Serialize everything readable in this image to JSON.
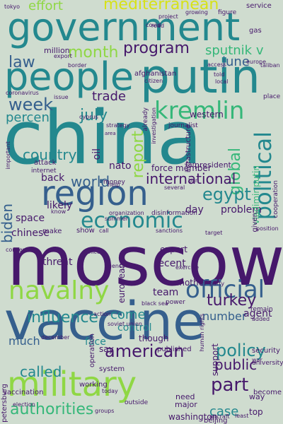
{
  "palette": {
    "background": "#cfdccf",
    "dark_purple": "#46186b",
    "blue": "#355f8d",
    "teal": "#23888e",
    "green": "#35b779",
    "lime": "#8fd744"
  },
  "words": [
    {
      "text": "moscow",
      "color": "#46186b",
      "rotation": "horizontal"
    },
    {
      "text": "china",
      "color": "#23888e",
      "rotation": "horizontal"
    },
    {
      "text": "vaccine",
      "color": "#355f8d",
      "rotation": "horizontal"
    },
    {
      "text": "government",
      "color": "#23888e",
      "rotation": "horizontal"
    },
    {
      "text": "people",
      "color": "#23888e",
      "rotation": "horizontal"
    },
    {
      "text": "putin",
      "color": "#23888e",
      "rotation": "horizontal"
    },
    {
      "text": "region",
      "color": "#355f8d",
      "rotation": "horizontal"
    },
    {
      "text": "navalny",
      "color": "#8fd744",
      "rotation": "horizontal"
    },
    {
      "text": "military",
      "color": "#8fd744",
      "rotation": "horizontal"
    },
    {
      "text": "kremlin",
      "color": "#35b779",
      "rotation": "horizontal"
    },
    {
      "text": "economic",
      "color": "#23888e",
      "rotation": "horizontal"
    },
    {
      "text": "official",
      "color": "#355f8d",
      "rotation": "horizontal"
    },
    {
      "text": "political",
      "color": "#23888e",
      "rotation": "vertical"
    },
    {
      "text": "mediterranean",
      "color": "#d7e219",
      "rotation": "horizontal"
    },
    {
      "text": "effort",
      "color": "#8fd744",
      "rotation": "horizontal"
    },
    {
      "text": "program",
      "color": "#46186b",
      "rotation": "horizontal"
    },
    {
      "text": "month",
      "color": "#8fd744",
      "rotation": "horizontal"
    },
    {
      "text": "sputnik v",
      "color": "#35b779",
      "rotation": "horizontal"
    },
    {
      "text": "law",
      "color": "#355f8d",
      "rotation": "horizontal"
    },
    {
      "text": "june",
      "color": "#355f8d",
      "rotation": "horizontal"
    },
    {
      "text": "week",
      "color": "#355f8d",
      "rotation": "horizontal"
    },
    {
      "text": "trade",
      "color": "#46186b",
      "rotation": "horizontal"
    },
    {
      "text": "percent",
      "color": "#23888e",
      "rotation": "horizontal"
    },
    {
      "text": "july",
      "color": "#23888e",
      "rotation": "horizontal"
    },
    {
      "text": "report",
      "color": "#8fd744",
      "rotation": "vertical"
    },
    {
      "text": "global",
      "color": "#35b779",
      "rotation": "vertical"
    },
    {
      "text": "countrys",
      "color": "#23888e",
      "rotation": "horizontal"
    },
    {
      "text": "world",
      "color": "#355f8d",
      "rotation": "horizontal"
    },
    {
      "text": "international",
      "color": "#46186b",
      "rotation": "horizontal"
    },
    {
      "text": "egypt",
      "color": "#23888e",
      "rotation": "horizontal"
    },
    {
      "text": "biden",
      "color": "#355f8d",
      "rotation": "vertical"
    },
    {
      "text": "turkey",
      "color": "#46186b",
      "rotation": "horizontal"
    },
    {
      "text": "influence",
      "color": "#23888e",
      "rotation": "horizontal"
    },
    {
      "text": "come",
      "color": "#23888e",
      "rotation": "horizontal"
    },
    {
      "text": "number",
      "color": "#355f8d",
      "rotation": "horizontal"
    },
    {
      "text": "american",
      "color": "#46186b",
      "rotation": "horizontal"
    },
    {
      "text": "policy",
      "color": "#23888e",
      "rotation": "horizontal"
    },
    {
      "text": "part",
      "color": "#46186b",
      "rotation": "horizontal"
    },
    {
      "text": "called",
      "color": "#23888e",
      "rotation": "horizontal"
    },
    {
      "text": "authorities",
      "color": "#35b779",
      "rotation": "horizontal"
    },
    {
      "text": "case",
      "color": "#23888e",
      "rotation": "horizontal"
    },
    {
      "text": "public",
      "color": "#46186b",
      "rotation": "horizontal"
    },
    {
      "text": "much",
      "color": "#355f8d",
      "rotation": "horizontal"
    },
    {
      "text": "face",
      "color": "#23888e",
      "rotation": "horizontal"
    },
    {
      "text": "control",
      "color": "#23888e",
      "rotation": "horizontal"
    },
    {
      "text": "chinese",
      "color": "#46186b",
      "rotation": "horizontal"
    },
    {
      "text": "space",
      "color": "#46186b",
      "rotation": "horizontal"
    },
    {
      "text": "likely",
      "color": "#46186b",
      "rotation": "horizontal"
    },
    {
      "text": "back",
      "color": "#46186b",
      "rotation": "horizontal"
    },
    {
      "text": "nato",
      "color": "#46186b",
      "rotation": "horizontal"
    },
    {
      "text": "oil",
      "color": "#46186b",
      "rotation": "vertical"
    },
    {
      "text": "problem",
      "color": "#46186b",
      "rotation": "horizontal"
    },
    {
      "text": "day",
      "color": "#46186b",
      "rotation": "horizontal"
    },
    {
      "text": "team",
      "color": "#46186b",
      "rotation": "horizontal"
    },
    {
      "text": "another",
      "color": "#46186b",
      "rotation": "horizontal"
    },
    {
      "text": "threat",
      "color": "#46186b",
      "rotation": "horizontal"
    },
    {
      "text": "recent",
      "color": "#46186b",
      "rotation": "horizontal"
    },
    {
      "text": "expert",
      "color": "#46186b",
      "rotation": "horizontal"
    },
    {
      "text": "european",
      "color": "#46186b",
      "rotation": "vertical"
    },
    {
      "text": "agent",
      "color": "#46186b",
      "rotation": "horizontal"
    },
    {
      "text": "western",
      "color": "#46186b",
      "rotation": "horizontal"
    },
    {
      "text": "force member",
      "color": "#46186b",
      "rotation": "horizontal"
    },
    {
      "text": "million",
      "color": "#46186b",
      "rotation": "horizontal"
    },
    {
      "text": "president",
      "color": "#46186b",
      "rotation": "horizontal"
    },
    {
      "text": "vladimir putin",
      "color": "#35b779",
      "rotation": "vertical"
    },
    {
      "text": "washington",
      "color": "#46186b",
      "rotation": "horizontal"
    },
    {
      "text": "major",
      "color": "#46186b",
      "rotation": "horizontal"
    },
    {
      "text": "need",
      "color": "#46186b",
      "rotation": "horizontal"
    },
    {
      "text": "top",
      "color": "#46186b",
      "rotation": "horizontal"
    },
    {
      "text": "way",
      "color": "#46186b",
      "rotation": "horizontal"
    },
    {
      "text": "though",
      "color": "#46186b",
      "rotation": "horizontal"
    },
    {
      "text": "published",
      "color": "#46186b",
      "rotation": "horizontal"
    },
    {
      "text": "support",
      "color": "#46186b",
      "rotation": "vertical"
    },
    {
      "text": "say",
      "color": "#46186b",
      "rotation": "horizontal"
    },
    {
      "text": "system",
      "color": "#46186b",
      "rotation": "horizontal"
    },
    {
      "text": "working",
      "color": "#46186b",
      "rotation": "horizontal"
    },
    {
      "text": "beijing",
      "color": "#46186b",
      "rotation": "horizontal"
    },
    {
      "text": "security",
      "color": "#46186b",
      "rotation": "horizontal"
    },
    {
      "text": "become",
      "color": "#46186b",
      "rotation": "horizontal"
    },
    {
      "text": "afghanistan",
      "color": "#46186b",
      "rotation": "horizontal"
    },
    {
      "text": "citizen",
      "color": "#46186b",
      "rotation": "horizontal"
    },
    {
      "text": "told",
      "color": "#46186b",
      "rotation": "horizontal"
    },
    {
      "text": "local",
      "color": "#46186b",
      "rotation": "horizontal"
    },
    {
      "text": "journalist",
      "color": "#46186b",
      "rotation": "horizontal"
    },
    {
      "text": "service",
      "color": "#46186b",
      "rotation": "horizontal"
    },
    {
      "text": "figure",
      "color": "#46186b",
      "rotation": "horizontal"
    },
    {
      "text": "growing",
      "color": "#46186b",
      "rotation": "horizontal"
    },
    {
      "text": "gas",
      "color": "#46186b",
      "rotation": "horizontal"
    },
    {
      "text": "covid",
      "color": "#46186b",
      "rotation": "horizontal"
    },
    {
      "text": "export",
      "color": "#46186b",
      "rotation": "horizontal"
    },
    {
      "text": "cyprus",
      "color": "#46186b",
      "rotation": "horizontal"
    },
    {
      "text": "issue",
      "color": "#46186b",
      "rotation": "horizontal"
    },
    {
      "text": "strategy",
      "color": "#46186b",
      "rotation": "horizontal"
    },
    {
      "text": "area",
      "color": "#46186b",
      "rotation": "horizontal"
    },
    {
      "text": "place",
      "color": "#46186b",
      "rotation": "horizontal"
    },
    {
      "text": "internet",
      "color": "#46186b",
      "rotation": "horizontal"
    },
    {
      "text": "attack",
      "color": "#46186b",
      "rotation": "horizontal"
    },
    {
      "text": "money",
      "color": "#46186b",
      "rotation": "horizontal"
    },
    {
      "text": "far",
      "color": "#46186b",
      "rotation": "horizontal"
    },
    {
      "text": "organization",
      "color": "#46186b",
      "rotation": "horizontal"
    },
    {
      "text": "disinformation",
      "color": "#46186b",
      "rotation": "horizontal"
    },
    {
      "text": "know",
      "color": "#46186b",
      "rotation": "horizontal"
    },
    {
      "text": "make",
      "color": "#46186b",
      "rotation": "horizontal"
    },
    {
      "text": "show",
      "color": "#46186b",
      "rotation": "horizontal"
    },
    {
      "text": "call",
      "color": "#46186b",
      "rotation": "horizontal"
    },
    {
      "text": "sanctions",
      "color": "#46186b",
      "rotation": "horizontal"
    },
    {
      "text": "police",
      "color": "#46186b",
      "rotation": "horizontal"
    },
    {
      "text": "agency",
      "color": "#46186b",
      "rotation": "horizontal"
    },
    {
      "text": "exercise",
      "color": "#46186b",
      "rotation": "horizontal"
    },
    {
      "text": "party",
      "color": "#46186b",
      "rotation": "horizontal"
    },
    {
      "text": "remain",
      "color": "#46186b",
      "rotation": "horizontal"
    },
    {
      "text": "power",
      "color": "#46186b",
      "rotation": "horizontal"
    },
    {
      "text": "added",
      "color": "#46186b",
      "rotation": "horizontal"
    },
    {
      "text": "december",
      "color": "#46186b",
      "rotation": "horizontal"
    },
    {
      "text": "university",
      "color": "#46186b",
      "rotation": "horizontal"
    },
    {
      "text": "operation",
      "color": "#46186b",
      "rotation": "vertical"
    },
    {
      "text": "vaccination",
      "color": "#46186b",
      "rotation": "horizontal"
    },
    {
      "text": "election",
      "color": "#46186b",
      "rotation": "horizontal"
    },
    {
      "text": "outside",
      "color": "#46186b",
      "rotation": "horizontal"
    },
    {
      "text": "today",
      "color": "#46186b",
      "rotation": "horizontal"
    },
    {
      "text": "groups",
      "color": "#46186b",
      "rotation": "horizontal"
    },
    {
      "text": "help",
      "color": "#46186b",
      "rotation": "horizontal"
    },
    {
      "text": "war",
      "color": "#46186b",
      "rotation": "horizontal"
    },
    {
      "text": "st petersburg",
      "color": "#46186b",
      "rotation": "vertical"
    },
    {
      "text": "given",
      "color": "#46186b",
      "rotation": "vertical"
    },
    {
      "text": "position",
      "color": "#46186b",
      "rotation": "horizontal"
    },
    {
      "text": "cooperation",
      "color": "#46186b",
      "rotation": "vertical"
    },
    {
      "text": "infrastructure",
      "color": "#46186b",
      "rotation": "vertical"
    },
    {
      "text": "target",
      "color": "#46186b",
      "rotation": "horizontal"
    },
    {
      "text": "europe",
      "color": "#46186b",
      "rotation": "horizontal"
    },
    {
      "text": "access",
      "color": "#46186b",
      "rotation": "horizontal"
    },
    {
      "text": "project",
      "color": "#46186b",
      "rotation": "horizontal"
    },
    {
      "text": "read",
      "color": "#46186b",
      "rotation": "horizontal"
    },
    {
      "text": "tokyo",
      "color": "#46186b",
      "rotation": "horizontal"
    },
    {
      "text": "human rights",
      "color": "#46186b",
      "rotation": "vertical"
    },
    {
      "text": "summer",
      "color": "#46186b",
      "rotation": "horizontal"
    },
    {
      "text": "important",
      "color": "#46186b",
      "rotation": "vertical"
    },
    {
      "text": "concern",
      "color": "#46186b",
      "rotation": "horizontal"
    },
    {
      "text": "taliban",
      "color": "#46186b",
      "rotation": "horizontal"
    },
    {
      "text": "ban",
      "color": "#46186b",
      "rotation": "horizontal"
    },
    {
      "text": "investigation",
      "color": "#46186b",
      "rotation": "vertical"
    },
    {
      "text": "several",
      "color": "#46186b",
      "rotation": "horizontal"
    },
    {
      "text": "already",
      "color": "#46186b",
      "rotation": "vertical"
    },
    {
      "text": "least",
      "color": "#46186b",
      "rotation": "horizontal"
    },
    {
      "text": "aircraft",
      "color": "#46186b",
      "rotation": "horizontal"
    },
    {
      "text": "action",
      "color": "#46186b",
      "rotation": "horizontal"
    },
    {
      "text": "soviet union",
      "color": "#46186b",
      "rotation": "horizontal"
    },
    {
      "text": "border",
      "color": "#46186b",
      "rotation": "horizontal"
    },
    {
      "text": "black sea",
      "color": "#46186b",
      "rotation": "horizontal"
    },
    {
      "text": "coronavirus",
      "color": "#46186b",
      "rotation": "horizontal"
    }
  ]
}
